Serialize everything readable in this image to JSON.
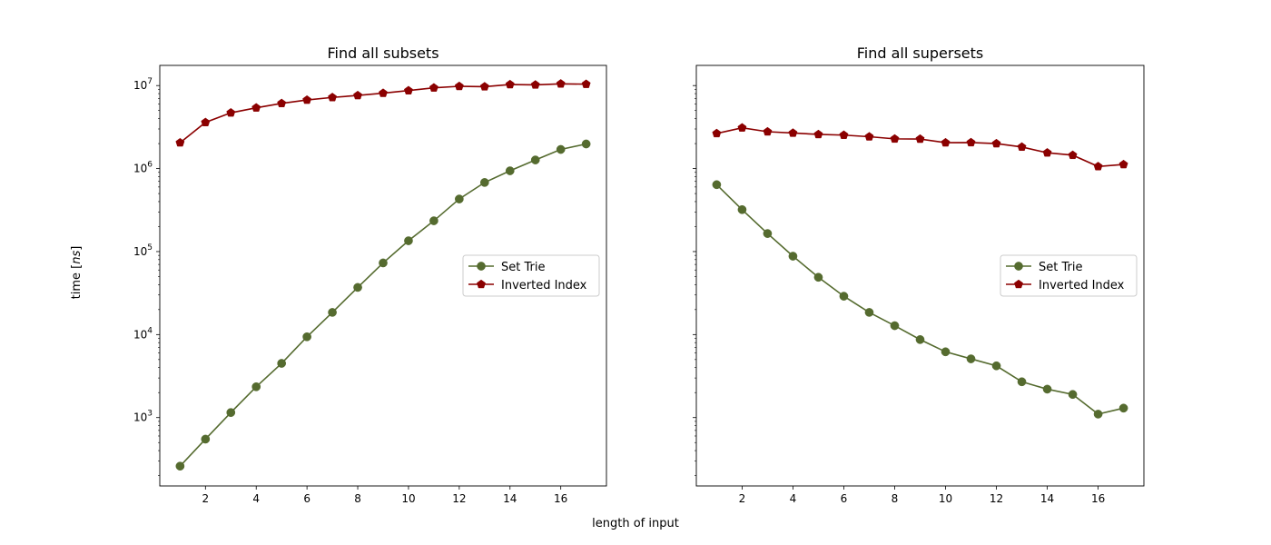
{
  "figure": {
    "xlabel": "length of input",
    "ylabel": "time [",
    "ylabel_unit": "ns",
    "ylabel_suffix": "]"
  },
  "chart_data": [
    {
      "type": "line",
      "title": "Find all subsets",
      "xlabel": "length of input",
      "ylabel": "time [ns]",
      "y_scale": "log",
      "x": [
        1,
        2,
        3,
        4,
        5,
        6,
        7,
        8,
        9,
        10,
        11,
        12,
        13,
        14,
        15,
        16,
        17
      ],
      "x_ticks": [
        2,
        4,
        6,
        8,
        10,
        12,
        14,
        16
      ],
      "y_ticks": [
        {
          "base": "10",
          "exp": "3",
          "value": 1000
        },
        {
          "base": "10",
          "exp": "4",
          "value": 10000
        },
        {
          "base": "10",
          "exp": "5",
          "value": 100000
        },
        {
          "base": "10",
          "exp": "6",
          "value": 1000000
        },
        {
          "base": "10",
          "exp": "7",
          "value": 10000000
        }
      ],
      "xlim": [
        0.2,
        17.8
      ],
      "ylim": [
        150,
        17500000
      ],
      "grid": false,
      "legend_position": "center-right",
      "series": [
        {
          "name": "Set Trie",
          "color": "#556b2f",
          "marker": "circle",
          "values": [
            260,
            550,
            1150,
            2350,
            4500,
            9400,
            18500,
            37000,
            73000,
            135000,
            235000,
            430000,
            680000,
            940000,
            1270000,
            1700000,
            1980000
          ]
        },
        {
          "name": "Inverted Index",
          "color": "#8b0000",
          "marker": "pentagon",
          "values": [
            2050000,
            3600000,
            4700000,
            5400000,
            6100000,
            6700000,
            7200000,
            7600000,
            8100000,
            8700000,
            9400000,
            9800000,
            9700000,
            10300000,
            10200000,
            10500000,
            10400000
          ]
        }
      ]
    },
    {
      "type": "line",
      "title": "Find all supersets",
      "xlabel": "length of input",
      "ylabel": "time [ns]",
      "y_scale": "log",
      "x": [
        1,
        2,
        3,
        4,
        5,
        6,
        7,
        8,
        9,
        10,
        11,
        12,
        13,
        14,
        15,
        16,
        17
      ],
      "x_ticks": [
        2,
        4,
        6,
        8,
        10,
        12,
        14,
        16
      ],
      "y_ticks": [],
      "xlim": [
        0.2,
        17.8
      ],
      "ylim": [
        150,
        17500000
      ],
      "shared_y": true,
      "grid": false,
      "legend_position": "center-right",
      "series": [
        {
          "name": "Set Trie",
          "color": "#556b2f",
          "marker": "circle",
          "values": [
            640000,
            320000,
            165000,
            88000,
            49000,
            29000,
            18500,
            12800,
            8700,
            6200,
            5100,
            4200,
            2700,
            2200,
            1900,
            1100,
            1300
          ]
        },
        {
          "name": "Inverted Index",
          "color": "#8b0000",
          "marker": "pentagon",
          "values": [
            2650000,
            3100000,
            2780000,
            2680000,
            2580000,
            2530000,
            2420000,
            2280000,
            2270000,
            2050000,
            2060000,
            2000000,
            1820000,
            1550000,
            1450000,
            1060000,
            1120000
          ]
        }
      ]
    }
  ]
}
